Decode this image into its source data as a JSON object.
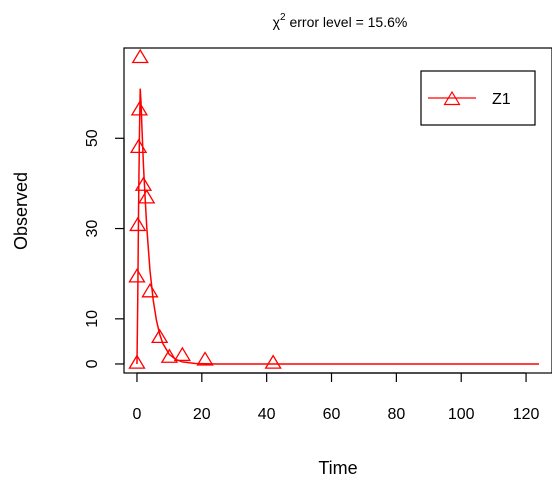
{
  "chart_data": {
    "type": "scatter",
    "title_prefix": "χ",
    "title_sup": "2",
    "title_suffix": " error level = 15.6%",
    "xlabel": "Time",
    "ylabel": "Observed",
    "xlim": [
      -4,
      128
    ],
    "ylim": [
      -2,
      70
    ],
    "xticks": [
      0,
      20,
      40,
      60,
      80,
      100,
      120
    ],
    "xtick_labels": [
      "0",
      "20",
      "40",
      "60",
      "80",
      "100",
      "120"
    ],
    "yticks": [
      0,
      10,
      30,
      50
    ],
    "ytick_labels": [
      "0",
      "10",
      "30",
      "50"
    ],
    "legend_position": "top-right",
    "grid": false,
    "series": [
      {
        "name": "Z1",
        "color": "#ff0000",
        "marker": "triangle-icon",
        "observed": [
          {
            "x": 0,
            "y": 0.3
          },
          {
            "x": 0,
            "y": 19.4
          },
          {
            "x": 0.25,
            "y": 30.8
          },
          {
            "x": 0.5,
            "y": 48.1
          },
          {
            "x": 0.75,
            "y": 56.4
          },
          {
            "x": 1,
            "y": 68
          },
          {
            "x": 2,
            "y": 39.7
          },
          {
            "x": 3,
            "y": 36.9
          },
          {
            "x": 4,
            "y": 16.1
          },
          {
            "x": 7,
            "y": 6.0
          },
          {
            "x": 10,
            "y": 1.6
          },
          {
            "x": 14,
            "y": 2.0
          },
          {
            "x": 21,
            "y": 1.0
          },
          {
            "x": 42,
            "y": 0.3
          }
        ],
        "fitted": [
          {
            "x": 0,
            "y": 0
          },
          {
            "x": 0.25,
            "y": 15
          },
          {
            "x": 0.5,
            "y": 35
          },
          {
            "x": 0.75,
            "y": 50
          },
          {
            "x": 1,
            "y": 61
          },
          {
            "x": 1.25,
            "y": 58
          },
          {
            "x": 1.5,
            "y": 53
          },
          {
            "x": 2,
            "y": 44
          },
          {
            "x": 2.5,
            "y": 37
          },
          {
            "x": 3,
            "y": 30.5
          },
          {
            "x": 4,
            "y": 20.8
          },
          {
            "x": 5,
            "y": 14.2
          },
          {
            "x": 6,
            "y": 9.7
          },
          {
            "x": 7,
            "y": 6.6
          },
          {
            "x": 8,
            "y": 4.5
          },
          {
            "x": 10,
            "y": 2.1
          },
          {
            "x": 12,
            "y": 1.0
          },
          {
            "x": 14,
            "y": 0.45
          },
          {
            "x": 18,
            "y": 0.1
          },
          {
            "x": 25,
            "y": 0
          },
          {
            "x": 50,
            "y": 0
          },
          {
            "x": 124,
            "y": 0
          }
        ]
      }
    ]
  }
}
